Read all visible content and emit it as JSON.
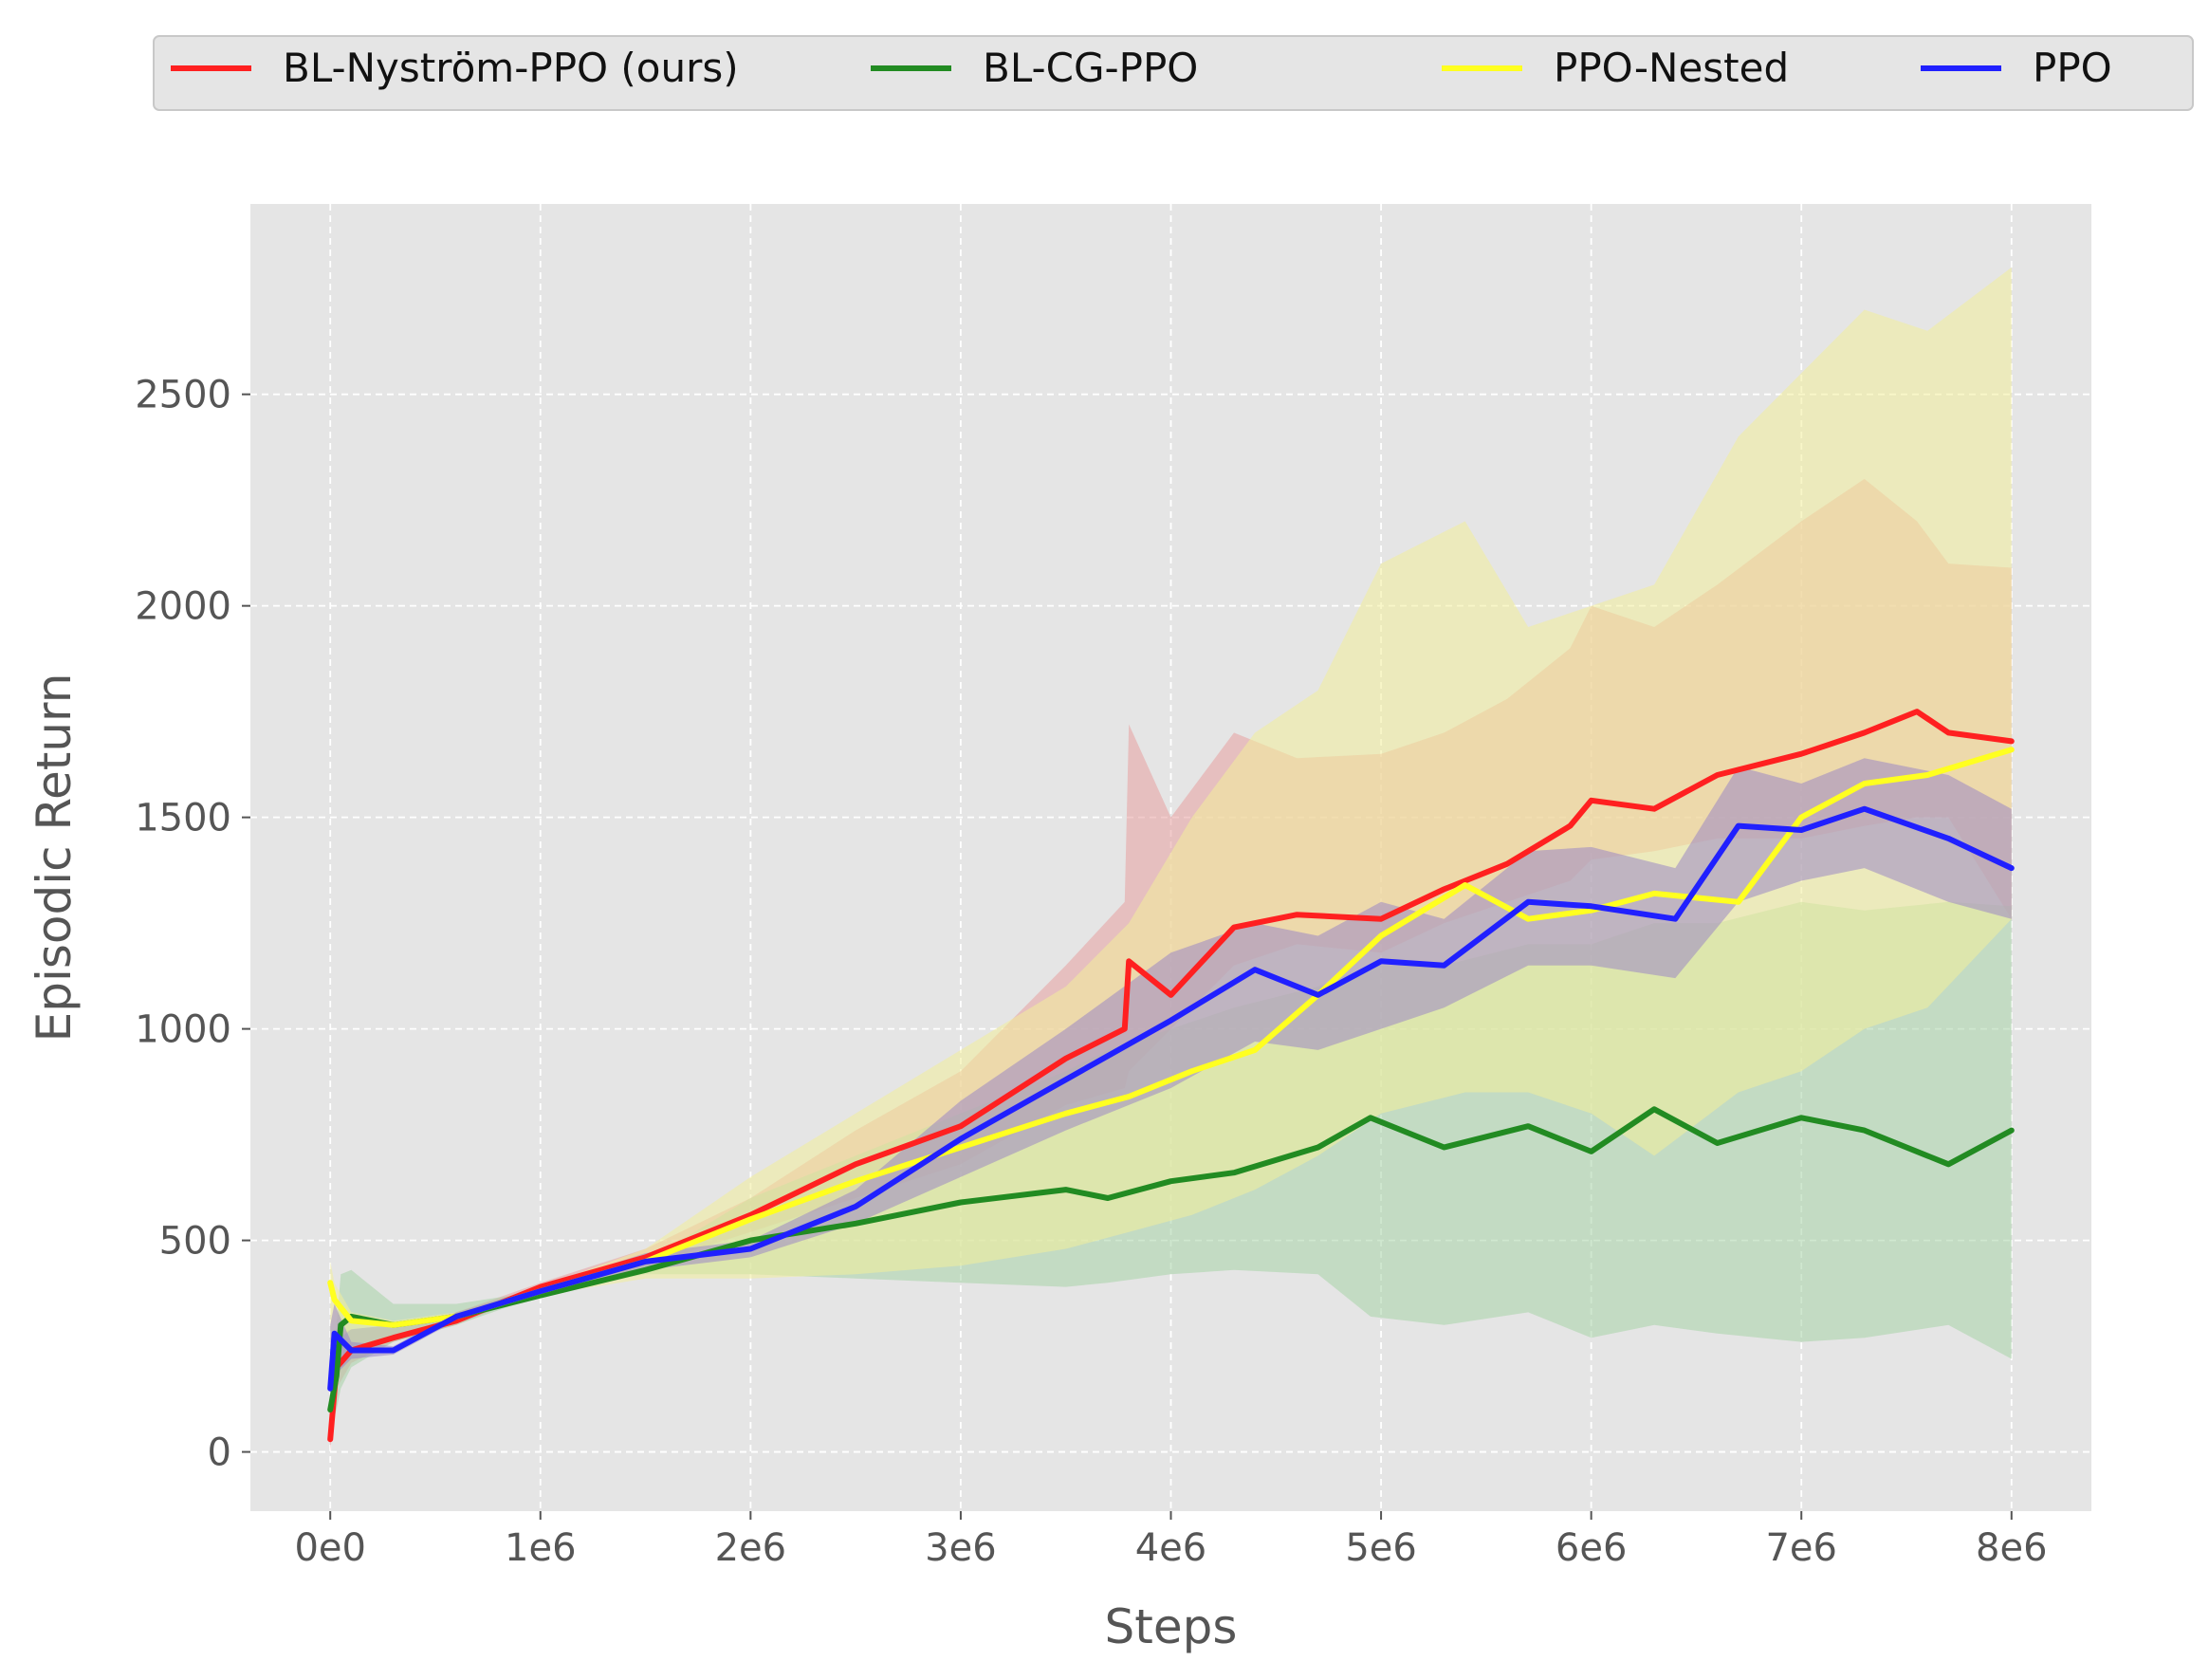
{
  "chart_data": {
    "type": "line",
    "title": "",
    "xlabel": "Steps",
    "ylabel": "Episodic Return",
    "xlim": [
      -380000,
      8380000
    ],
    "ylim": [
      -140,
      2950
    ],
    "grid": true,
    "legend_placement": "top-center",
    "x_ticks": [
      {
        "value": 0,
        "label": "0e0"
      },
      {
        "value": 1000000,
        "label": "1e6"
      },
      {
        "value": 2000000,
        "label": "2e6"
      },
      {
        "value": 3000000,
        "label": "3e6"
      },
      {
        "value": 4000000,
        "label": "4e6"
      },
      {
        "value": 5000000,
        "label": "5e6"
      },
      {
        "value": 6000000,
        "label": "6e6"
      },
      {
        "value": 7000000,
        "label": "7e6"
      },
      {
        "value": 8000000,
        "label": "8e6"
      }
    ],
    "y_ticks": [
      {
        "value": 0,
        "label": "0"
      },
      {
        "value": 500,
        "label": "500"
      },
      {
        "value": 1000,
        "label": "1000"
      },
      {
        "value": 1500,
        "label": "1500"
      },
      {
        "value": 2000,
        "label": "2000"
      },
      {
        "value": 2500,
        "label": "2500"
      }
    ],
    "series": [
      {
        "name": "BL-Nyström-PPO (ours)",
        "color": "#ff2020",
        "band_color": "#e8a0a0",
        "x": [
          0,
          30000,
          100000,
          300000,
          600000,
          1000000,
          1500000,
          2000000,
          2500000,
          3000000,
          3500000,
          3780000,
          3800000,
          4000000,
          4300000,
          4600000,
          5000000,
          5300000,
          5600000,
          5900000,
          6000000,
          6300000,
          6600000,
          7000000,
          7300000,
          7550000,
          7700000,
          8000000
        ],
        "y": [
          30,
          200,
          240,
          270,
          310,
          390,
          460,
          560,
          680,
          770,
          930,
          1000,
          1160,
          1080,
          1240,
          1270,
          1260,
          1330,
          1390,
          1480,
          1540,
          1520,
          1600,
          1650,
          1700,
          1750,
          1700,
          1680
        ],
        "lower": [
          0,
          150,
          210,
          260,
          300,
          380,
          440,
          520,
          600,
          680,
          820,
          860,
          900,
          1000,
          1150,
          1200,
          1180,
          1250,
          1300,
          1350,
          1400,
          1420,
          1450,
          1450,
          1480,
          1500,
          1500,
          1260
        ],
        "upper": [
          100,
          280,
          290,
          300,
          330,
          400,
          480,
          600,
          760,
          900,
          1150,
          1300,
          1720,
          1500,
          1700,
          1640,
          1650,
          1700,
          1780,
          1900,
          2000,
          1950,
          2050,
          2200,
          2300,
          2200,
          2100,
          2090
        ]
      },
      {
        "name": "BL-CG-PPO",
        "color": "#228b22",
        "band_color": "#a8d4a8",
        "x": [
          0,
          30000,
          50000,
          100000,
          300000,
          600000,
          1000000,
          1500000,
          2000000,
          2500000,
          3000000,
          3500000,
          3700000,
          4000000,
          4300000,
          4700000,
          4950000,
          5300000,
          5700000,
          6000000,
          6300000,
          6600000,
          7000000,
          7300000,
          7700000,
          8000000
        ],
        "y": [
          100,
          180,
          300,
          320,
          300,
          320,
          370,
          430,
          500,
          540,
          590,
          620,
          600,
          640,
          660,
          720,
          790,
          720,
          770,
          710,
          810,
          730,
          790,
          760,
          680,
          760
        ],
        "lower": [
          50,
          100,
          150,
          200,
          260,
          300,
          370,
          420,
          420,
          410,
          400,
          390,
          400,
          420,
          430,
          420,
          320,
          300,
          330,
          270,
          300,
          280,
          260,
          270,
          300,
          220
        ],
        "upper": [
          200,
          300,
          420,
          430,
          350,
          350,
          380,
          450,
          600,
          700,
          800,
          900,
          950,
          1000,
          1050,
          1100,
          1150,
          1150,
          1200,
          1200,
          1250,
          1250,
          1300,
          1280,
          1300,
          1290
        ]
      },
      {
        "name": "PPO-Nested",
        "color": "#ffff20",
        "band_color": "#f2ee9a",
        "x": [
          0,
          20000,
          100000,
          300000,
          600000,
          1000000,
          1500000,
          2000000,
          2500000,
          3000000,
          3500000,
          3800000,
          4100000,
          4400000,
          4700000,
          5000000,
          5400000,
          5700000,
          6000000,
          6300000,
          6700000,
          7000000,
          7300000,
          7600000,
          8000000
        ],
        "y": [
          400,
          360,
          310,
          300,
          320,
          380,
          450,
          550,
          640,
          720,
          800,
          840,
          900,
          950,
          1080,
          1220,
          1340,
          1260,
          1280,
          1320,
          1300,
          1500,
          1580,
          1600,
          1660
        ],
        "lower": [
          250,
          260,
          290,
          300,
          320,
          370,
          410,
          410,
          420,
          440,
          480,
          520,
          560,
          620,
          700,
          800,
          850,
          850,
          800,
          700,
          850,
          900,
          1000,
          1050,
          1260
        ],
        "upper": [
          450,
          400,
          330,
          310,
          330,
          390,
          480,
          650,
          800,
          950,
          1100,
          1250,
          1500,
          1700,
          1800,
          2100,
          2200,
          1950,
          2000,
          2050,
          2400,
          2550,
          2700,
          2650,
          2800
        ]
      },
      {
        "name": "PPO",
        "color": "#2020ff",
        "band_color": "#9a86c4",
        "x": [
          0,
          20000,
          100000,
          300000,
          600000,
          1000000,
          1500000,
          2000000,
          2500000,
          3000000,
          3500000,
          4000000,
          4400000,
          4700000,
          5000000,
          5300000,
          5700000,
          6000000,
          6400000,
          6700000,
          7000000,
          7300000,
          7700000,
          8000000
        ],
        "y": [
          150,
          280,
          240,
          240,
          320,
          380,
          450,
          480,
          580,
          740,
          880,
          1020,
          1140,
          1080,
          1160,
          1150,
          1300,
          1290,
          1260,
          1480,
          1470,
          1520,
          1450,
          1380
        ],
        "lower": [
          100,
          180,
          220,
          230,
          310,
          370,
          430,
          460,
          540,
          650,
          760,
          860,
          970,
          950,
          1000,
          1050,
          1150,
          1150,
          1120,
          1300,
          1350,
          1380,
          1300,
          1260
        ],
        "upper": [
          300,
          350,
          260,
          250,
          330,
          390,
          470,
          500,
          620,
          830,
          1000,
          1180,
          1250,
          1220,
          1300,
          1260,
          1420,
          1430,
          1380,
          1620,
          1580,
          1640,
          1600,
          1520
        ]
      }
    ]
  }
}
